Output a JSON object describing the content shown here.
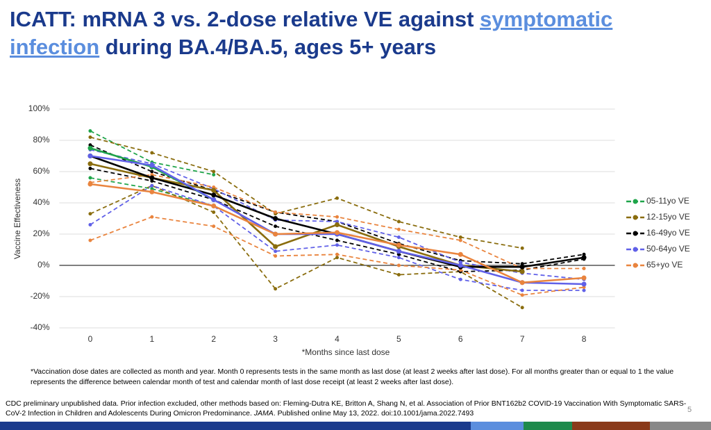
{
  "header": {
    "title_before": "ICATT: mRNA 3 vs. 2-dose relative VE against ",
    "title_link": "symptomatic infection",
    "title_after": " during BA.4/BA.5, ages 5+ years"
  },
  "chart_data": {
    "type": "line",
    "x_label": "*Months since last dose",
    "y_label": "Vaccine Effectiveness",
    "x": [
      0,
      1,
      2,
      3,
      4,
      5,
      6,
      7,
      8
    ],
    "xlim": [
      -0.5,
      8.5
    ],
    "xticks": [
      0,
      1,
      2,
      3,
      4,
      5,
      6,
      7,
      8
    ],
    "ylim": [
      -40,
      100
    ],
    "yticks": [
      {
        "value": -40,
        "label": "-40%"
      },
      {
        "value": -20,
        "label": "-20%"
      },
      {
        "value": 0,
        "label": "0%"
      },
      {
        "value": 20,
        "label": "20%"
      },
      {
        "value": 40,
        "label": "40%"
      },
      {
        "value": 60,
        "label": "60%"
      },
      {
        "value": 80,
        "label": "80%"
      },
      {
        "value": 100,
        "label": "100%"
      }
    ],
    "grid": true,
    "legend": "right",
    "series": [
      {
        "name": "05-11yo VE",
        "color": "#1fa54a",
        "values": [
          75,
          63,
          42,
          null,
          null,
          null,
          null,
          null,
          null
        ],
        "upper": [
          86,
          66,
          58,
          null,
          null,
          null,
          null,
          null,
          null
        ],
        "lower": [
          56,
          49,
          38,
          null,
          null,
          null,
          null,
          null,
          null
        ]
      },
      {
        "name": "12-15yo VE",
        "color": "#8a6d0e",
        "values": [
          65,
          56,
          48,
          12,
          26,
          12,
          0,
          -4,
          null
        ],
        "upper": [
          82,
          72,
          60,
          33,
          43,
          28,
          18,
          11,
          null
        ],
        "lower": [
          33,
          51,
          34,
          -15,
          5,
          -6,
          -4,
          -27,
          null
        ]
      },
      {
        "name": "16-49yo VE",
        "color": "#000000",
        "values": [
          70,
          56,
          45,
          30,
          20,
          9,
          -1,
          -1,
          5
        ],
        "upper": [
          77,
          60,
          48,
          34,
          28,
          14,
          3,
          1,
          7
        ],
        "lower": [
          62,
          54,
          42,
          25,
          16,
          7,
          -4,
          -3,
          4
        ]
      },
      {
        "name": "50-64yo VE",
        "color": "#6060e8",
        "values": [
          70,
          64,
          42,
          20,
          20,
          9,
          0,
          -11,
          -12
        ],
        "upper": [
          74,
          65,
          49,
          29,
          28,
          18,
          2,
          -5,
          -9
        ],
        "lower": [
          26,
          51,
          38,
          9,
          13,
          5,
          -9,
          -16,
          -16
        ]
      },
      {
        "name": "65+yo VE",
        "color": "#e9843e",
        "values": [
          52,
          47,
          38,
          20,
          21,
          13,
          7,
          -11,
          -8
        ],
        "upper": [
          53,
          58,
          50,
          34,
          31,
          23,
          16,
          -2,
          -2
        ],
        "lower": [
          16,
          31,
          25,
          6,
          7,
          0,
          -3,
          -19,
          -14
        ]
      }
    ]
  },
  "footnote": "*Vaccination dose dates are collected as month and year. Month 0 represents tests in the same month as last dose (at least 2 weeks after last dose).  For all months greater than or equal to 1 the value represents the difference between calendar month of test and calendar month of last dose receipt (at least 2 weeks after last dose).",
  "citation": {
    "before": "CDC preliminary unpublished data. Prior infection excluded, other methods based on: Fleming-Dutra KE, Britton A, Shang N, et al. Association of Prior BNT162b2 COVID-19 Vaccination With Symptomatic SARS-CoV-2 Infection in Children and Adolescents During Omicron Predominance. ",
    "journal": "JAMA",
    "after": ". Published online May 13, 2022. doi:10.1001/jama.2022.7493"
  },
  "page_number": "5"
}
